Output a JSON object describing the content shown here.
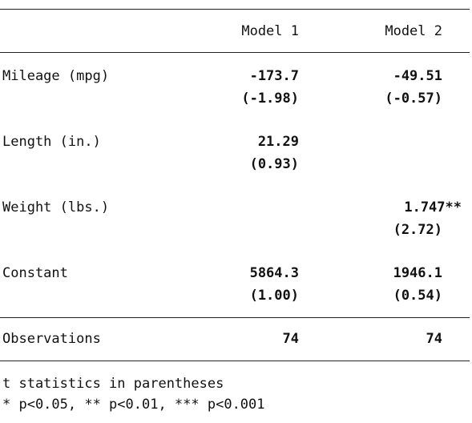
{
  "table": {
    "columns": [
      "Model 1",
      "Model 2"
    ],
    "rows": [
      {
        "label": "Mileage (mpg)",
        "m1": "-173.7",
        "m1_t": "(-1.98)",
        "m2": "-49.51",
        "m2_t": "(-0.57)"
      },
      {
        "label": "Length (in.)",
        "m1": "21.29",
        "m1_t": "(0.93)",
        "m2": "",
        "m2_t": ""
      },
      {
        "label": "Weight (lbs.)",
        "m1": "",
        "m1_t": "",
        "m2": "1.747**",
        "m2_t": "(2.72)"
      },
      {
        "label": "Constant",
        "m1": "5864.3",
        "m1_t": "(1.00)",
        "m2": "1946.1",
        "m2_t": "(0.54)"
      }
    ],
    "observations": {
      "label": "Observations",
      "m1": "74",
      "m2": "74"
    }
  },
  "notes": [
    "t statistics in parentheses",
    "* p<0.05, ** p<0.01, *** p<0.001"
  ]
}
